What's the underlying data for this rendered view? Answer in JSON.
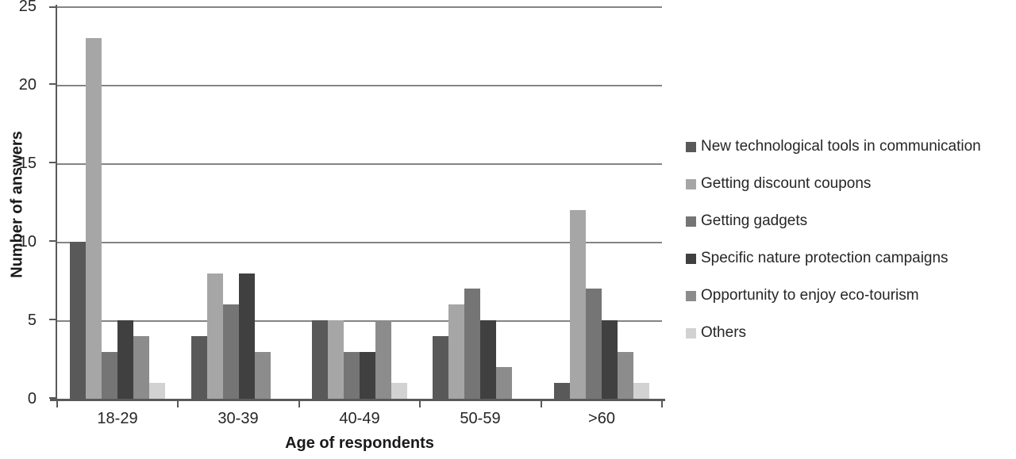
{
  "chart_data": {
    "type": "bar",
    "title": "",
    "xlabel": "Age of respondents",
    "ylabel": "Number of answers",
    "categories": [
      "18-29",
      "30-39",
      "40-49",
      "50-59",
      ">60"
    ],
    "series": [
      {
        "name": "New technological tools in communication",
        "color": "#595959",
        "values": [
          10,
          4,
          5,
          4,
          1
        ]
      },
      {
        "name": "Getting discount coupons",
        "color": "#A6A6A6",
        "values": [
          23,
          8,
          5,
          6,
          12
        ]
      },
      {
        "name": "Getting gadgets",
        "color": "#757575",
        "values": [
          3,
          6,
          3,
          7,
          7
        ]
      },
      {
        "name": "Specific nature protection campaigns",
        "color": "#404040",
        "values": [
          5,
          8,
          3,
          5,
          5
        ]
      },
      {
        "name": "Opportunity to enjoy eco-tourism",
        "color": "#8C8C8C",
        "values": [
          4,
          3,
          5,
          2,
          3
        ]
      },
      {
        "name": "Others",
        "color": "#D2D2D2",
        "values": [
          1,
          0,
          1,
          0,
          1
        ]
      }
    ],
    "yticks": [
      "25",
      "20",
      "15",
      "10",
      "5",
      "0"
    ],
    "ylim": [
      0,
      25
    ],
    "grid": "horizontal",
    "legend_position": "right"
  },
  "colors": {
    "gridline": "#848484",
    "axis": "#595959",
    "text": "#262626"
  }
}
